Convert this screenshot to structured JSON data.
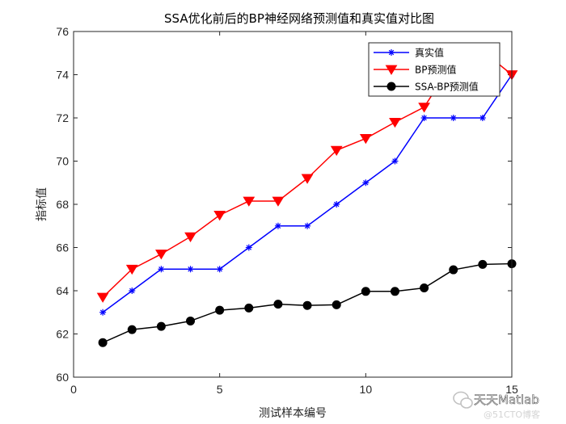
{
  "chart_data": {
    "type": "line",
    "title": "SSA优化前后的BP神经网络预测值和真实值对比图",
    "xlabel": "测试样本编号",
    "ylabel": "指标值",
    "xlim": [
      0,
      15
    ],
    "ylim": [
      60,
      76
    ],
    "xticks": [
      0,
      5,
      10,
      15
    ],
    "yticks": [
      60,
      62,
      64,
      66,
      68,
      70,
      72,
      74,
      76
    ],
    "grid": false,
    "legend_position": "top-right",
    "x": [
      1,
      2,
      3,
      4,
      5,
      6,
      7,
      8,
      9,
      10,
      11,
      12,
      13,
      14,
      15
    ],
    "series": [
      {
        "name": "真实值",
        "color": "#0000ff",
        "marker": "asterisk",
        "values": [
          63,
          64,
          65,
          65,
          65,
          66,
          67,
          67,
          68,
          69,
          70,
          72,
          72,
          72,
          74
        ]
      },
      {
        "name": "BP预测值",
        "color": "#ff0000",
        "marker": "triangle-down",
        "values": [
          63.7,
          65.0,
          65.7,
          66.5,
          67.5,
          68.15,
          68.15,
          69.2,
          70.5,
          71.05,
          71.8,
          72.5,
          74.6,
          75.1,
          74.0
        ]
      },
      {
        "name": "SSA-BP预测值",
        "color": "#000000",
        "marker": "circle",
        "values": [
          61.6,
          62.2,
          62.35,
          62.6,
          63.1,
          63.2,
          63.38,
          63.32,
          63.35,
          63.97,
          63.97,
          64.13,
          64.97,
          65.22,
          65.25
        ]
      }
    ]
  },
  "watermark": {
    "main": "天天Matlab",
    "sub": "@51CTO博客"
  }
}
